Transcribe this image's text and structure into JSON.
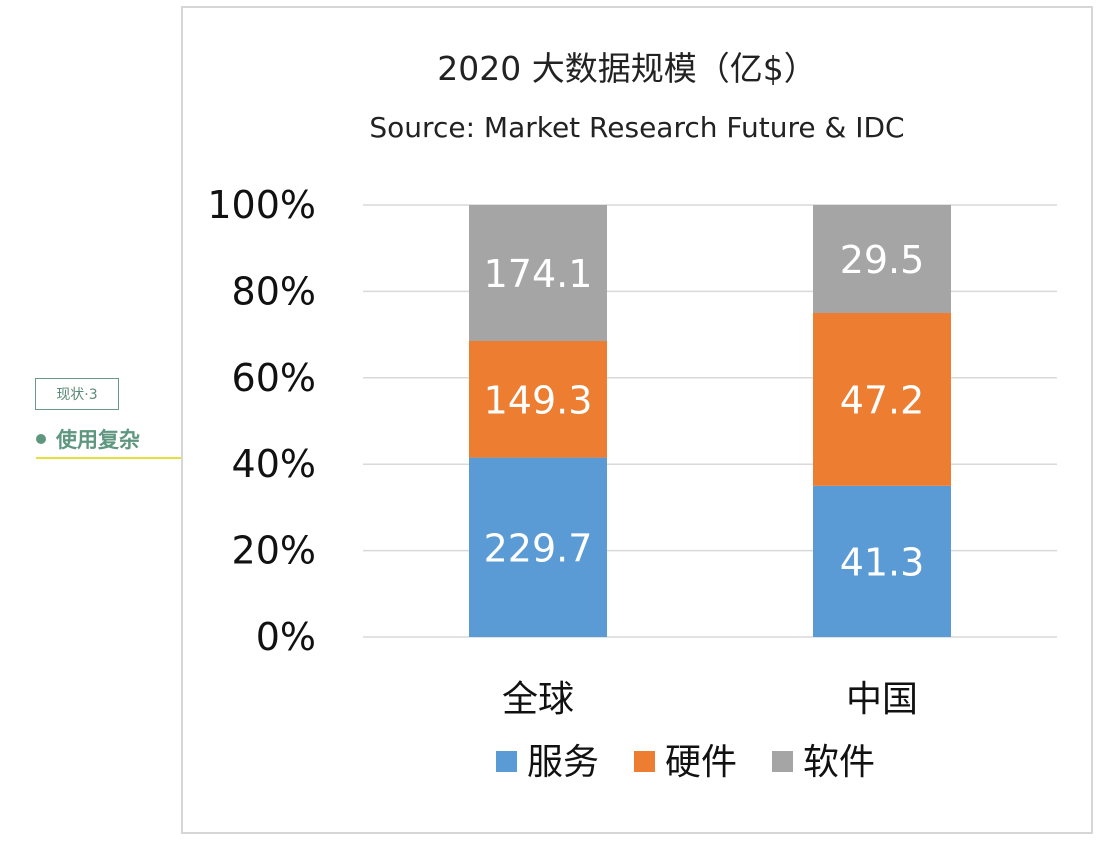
{
  "annotation": {
    "tag": "现状·3",
    "heading": "使用复杂"
  },
  "chart_data": {
    "type": "bar",
    "stacked": true,
    "normalized": true,
    "title": "2020 大数据规模（亿$）",
    "subtitle": "Source: Market Research Future  & IDC",
    "categories": [
      "全球",
      "中国"
    ],
    "series": [
      {
        "name": "服务",
        "values": [
          229.7,
          41.3
        ],
        "color": "#5b9bd5"
      },
      {
        "name": "硬件",
        "values": [
          149.3,
          47.2
        ],
        "color": "#ed7d31"
      },
      {
        "name": "软件",
        "values": [
          174.1,
          29.5
        ],
        "color": "#a5a5a5"
      }
    ],
    "y_ticks": [
      "0%",
      "20%",
      "40%",
      "60%",
      "80%",
      "100%"
    ],
    "ylim": [
      0,
      100
    ],
    "grid": true,
    "legend_position": "bottom"
  }
}
